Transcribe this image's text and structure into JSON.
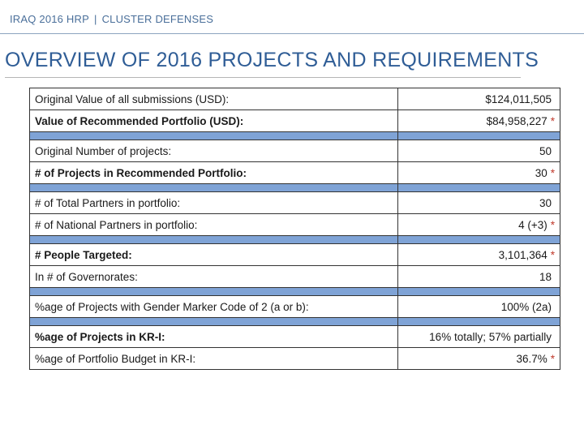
{
  "header": {
    "left": "IRAQ 2016 HRP",
    "separator": "|",
    "right": "CLUSTER DEFENSES"
  },
  "title": "OVERVIEW OF 2016 PROJECTS AND REQUIREMENTS",
  "rows": [
    {
      "label": "Original Value of all submissions (USD):",
      "value": "$124,011,505",
      "star": ""
    },
    {
      "label": "Value of Recommended Portfolio (USD):",
      "value": "$84,958,227",
      "star": "*"
    },
    {
      "label": "Original Number of projects:",
      "value": "50",
      "star": ""
    },
    {
      "label": "# of Projects in Recommended Portfolio:",
      "value": "30",
      "star": "*"
    },
    {
      "label": "# of Total Partners in portfolio:",
      "value": "30",
      "star": ""
    },
    {
      "label": "# of National Partners in portfolio:",
      "value": "4 (+3)",
      "star": "*"
    },
    {
      "label": "# People Targeted:",
      "value": "3,101,364",
      "star": "*"
    },
    {
      "label": "In # of Governorates:",
      "value": "18",
      "star": ""
    },
    {
      "label": "%age of Projects with Gender Marker Code of 2 (a or b):",
      "value": "100% (2a)",
      "star": ""
    },
    {
      "label": "%age of Projects in KR-I:",
      "value": "16% totally; 57% partially",
      "star": ""
    },
    {
      "label": "%age of Portfolio Budget in KR-I:",
      "value": "36.7%",
      "star": "*"
    }
  ],
  "colors": {
    "header_text": "#4a6f9a",
    "title_text": "#2f5d96",
    "separator_band": "#7fa3d6",
    "star": "#c0392b"
  }
}
